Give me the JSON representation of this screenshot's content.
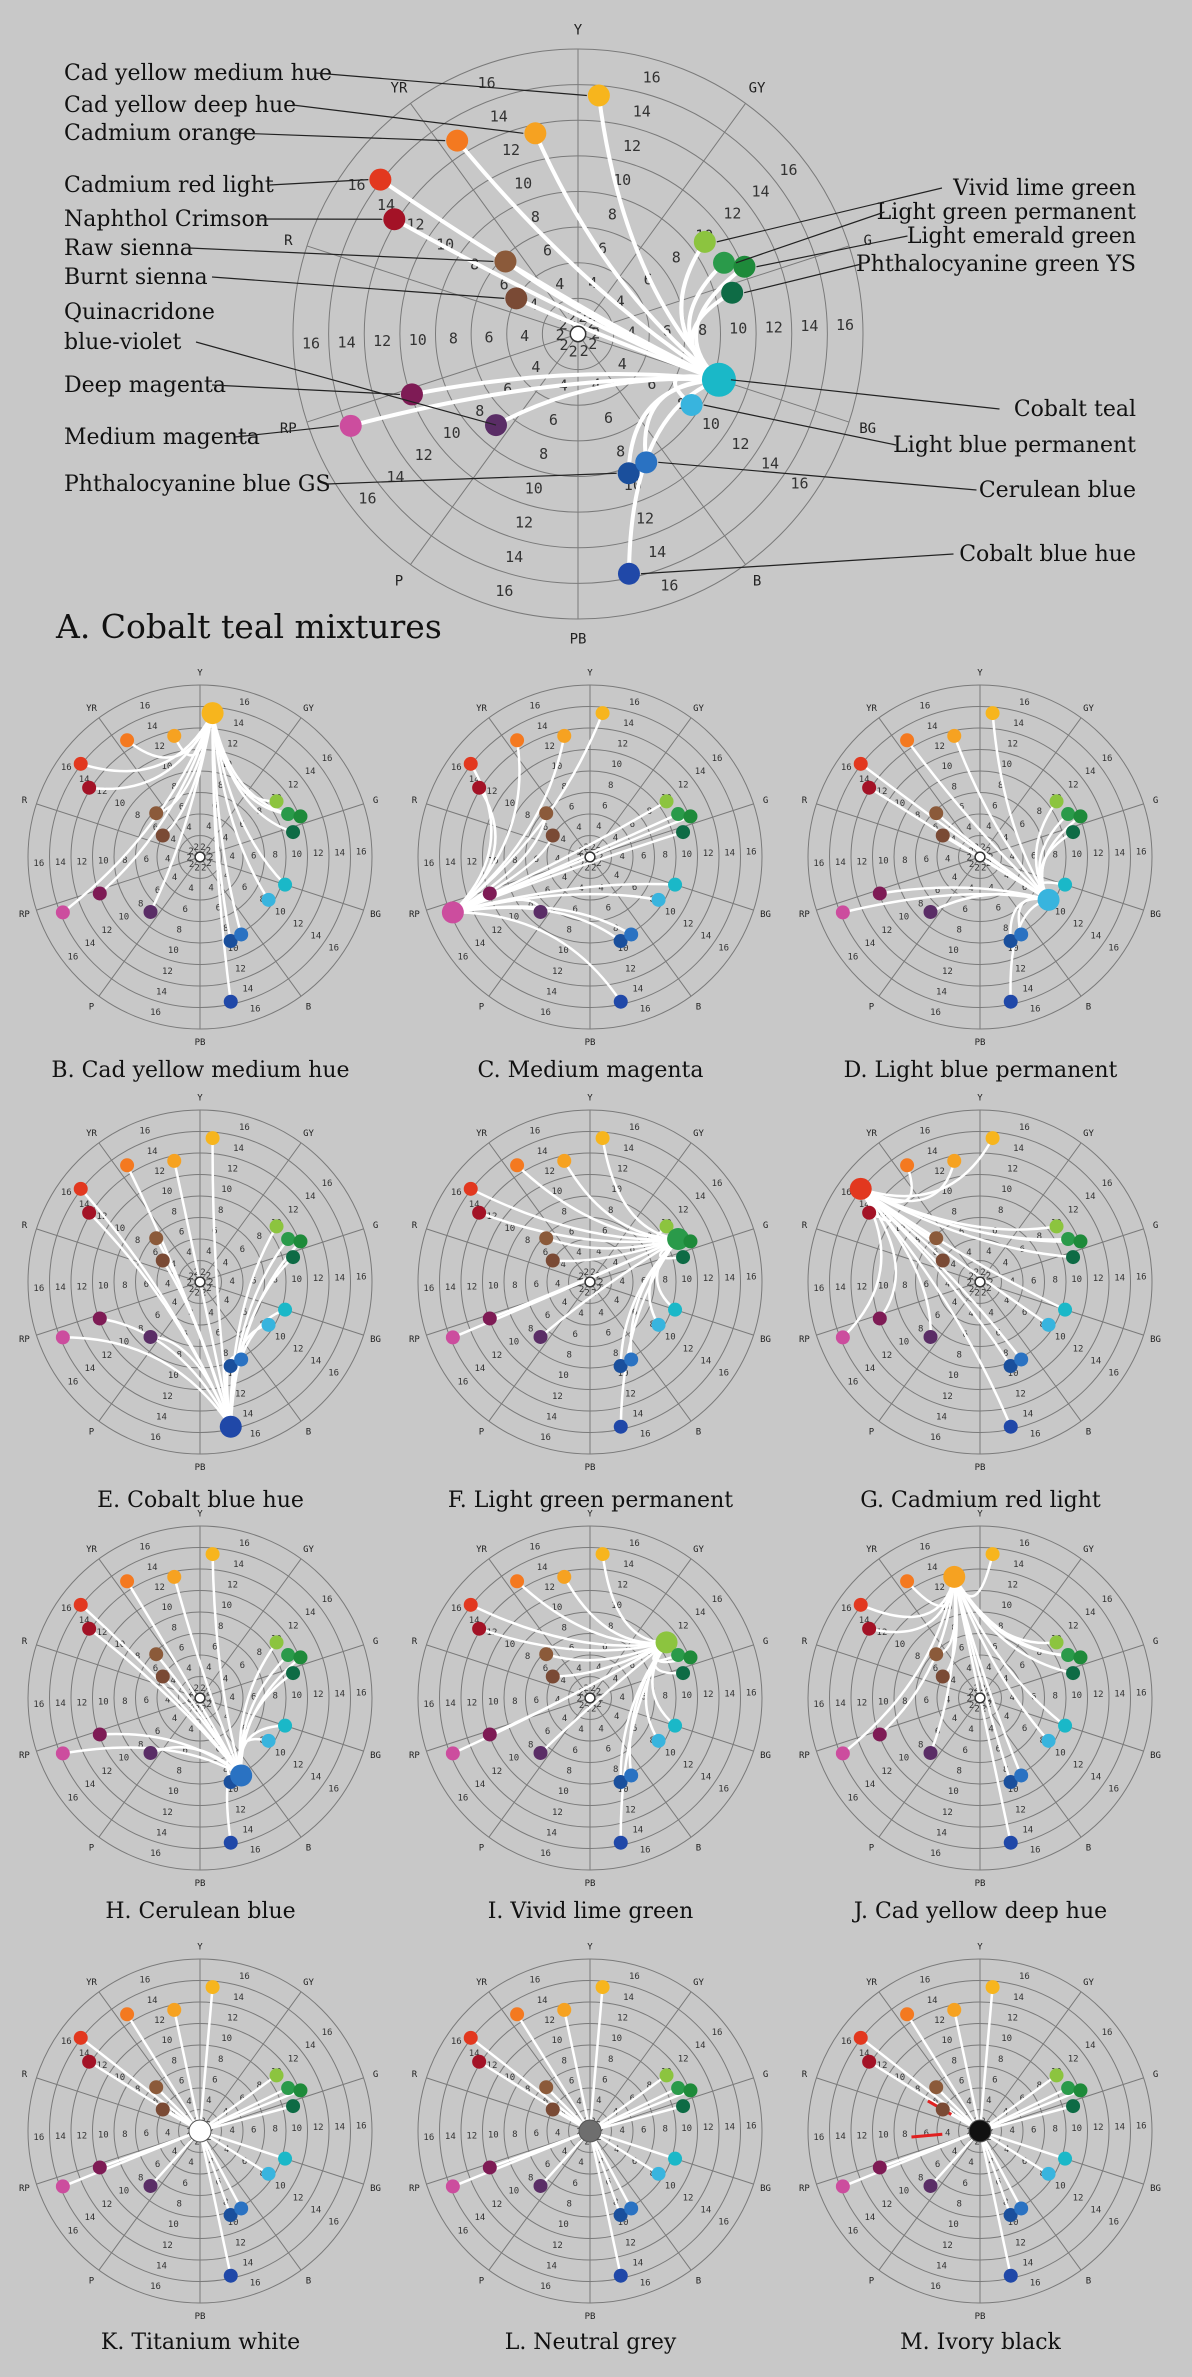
{
  "ring_labels": [
    "2",
    "4",
    "6",
    "8",
    "10",
    "12",
    "14",
    "16"
  ],
  "hue_labels": [
    "Y",
    "GY",
    "G",
    "BG",
    "B",
    "PB",
    "P",
    "RP",
    "R",
    "YR"
  ],
  "pigments": [
    {
      "name": "Cad yellow medium hue",
      "color": "#f7b51d"
    },
    {
      "name": "Cad yellow deep hue",
      "color": "#f6a221"
    },
    {
      "name": "Cadmium orange",
      "color": "#f47920"
    },
    {
      "name": "Cadmium red light",
      "color": "#e2381f"
    },
    {
      "name": "Naphthol Crimson",
      "color": "#a31226"
    },
    {
      "name": "Raw sienna",
      "color": "#8b5a3a"
    },
    {
      "name": "Burnt sienna",
      "color": "#7a4a35"
    },
    {
      "name": "Quinacridone blue-violet",
      "color": "#5a2d66"
    },
    {
      "name": "Deep magenta",
      "color": "#7e1b55"
    },
    {
      "name": "Medium magenta",
      "color": "#cc4d9e"
    },
    {
      "name": "Phthalocyanine blue GS",
      "color": "#1a4f9c"
    },
    {
      "name": "Vivid lime green",
      "color": "#8cc43f"
    },
    {
      "name": "Light green permanent",
      "color": "#2a9a4a"
    },
    {
      "name": "Light emerald green",
      "color": "#1e8a3a"
    },
    {
      "name": "Phthalocyanine green YS",
      "color": "#0e6b45"
    },
    {
      "name": "Cobalt teal",
      "color": "#1ab8c8"
    },
    {
      "name": "Light blue permanent",
      "color": "#38b4de"
    },
    {
      "name": "Cerulean blue",
      "color": "#2a72c2"
    },
    {
      "name": "Cobalt blue hue",
      "color": "#2048a8"
    },
    {
      "name": "Titanium white",
      "color": "#ffffff"
    },
    {
      "name": "Neutral grey",
      "color": "#6e6e6e"
    },
    {
      "name": "Ivory black",
      "color": "#111111"
    }
  ],
  "main_panel": {
    "caption": "A. Cobalt teal mixtures"
  },
  "panels": [
    {
      "caption": "B. Cad yellow medium hue"
    },
    {
      "caption": "C. Medium magenta"
    },
    {
      "caption": "D. Light blue permanent"
    },
    {
      "caption": "E. Cobalt blue hue"
    },
    {
      "caption": "F. Light green permanent"
    },
    {
      "caption": "G. Cadmium red light"
    },
    {
      "caption": "H. Cerulean blue"
    },
    {
      "caption": "I. Vivid lime green"
    },
    {
      "caption": "J.  Cad yellow deep hue"
    },
    {
      "caption": "K. Titanium white"
    },
    {
      "caption": "L. Neutral grey"
    },
    {
      "caption": "M. Ivory black"
    }
  ],
  "colors": {
    "background": "#c8c8c8",
    "grid": "#7a7a7a",
    "mixing_line": "#ffffff",
    "label_line": "#222222",
    "accent_red": "#e02020"
  }
}
